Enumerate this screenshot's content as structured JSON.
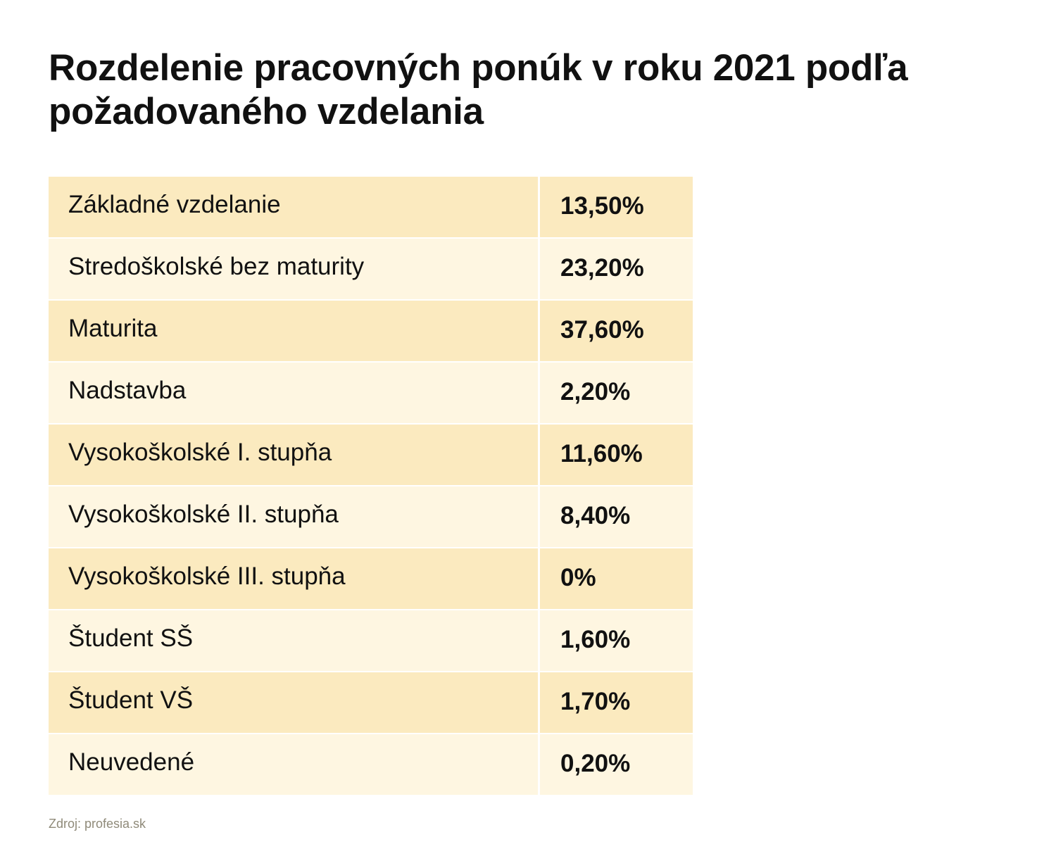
{
  "chart_data": {
    "type": "table",
    "title": "Rozdelenie pracovných ponúk v roku 2021 podľa požadovaného vzdelania",
    "rows": [
      {
        "label": "Základné vzdelanie",
        "value_text": "13,50%",
        "value": 13.5
      },
      {
        "label": "Stredoškolské bez maturity",
        "value_text": "23,20%",
        "value": 23.2
      },
      {
        "label": "Maturita",
        "value_text": "37,60%",
        "value": 37.6
      },
      {
        "label": "Nadstavba",
        "value_text": "2,20%",
        "value": 2.2
      },
      {
        "label": "Vysokoškolské I. stupňa",
        "value_text": "11,60%",
        "value": 11.6
      },
      {
        "label": "Vysokoškolské II. stupňa",
        "value_text": "8,40%",
        "value": 8.4
      },
      {
        "label": "Vysokoškolské III. stupňa",
        "value_text": "0%",
        "value": 0
      },
      {
        "label": "Študent SŠ",
        "value_text": "1,60%",
        "value": 1.6
      },
      {
        "label": "Študent VŠ",
        "value_text": "1,70%",
        "value": 1.7
      },
      {
        "label": "Neuvedené",
        "value_text": "0,20%",
        "value": 0.2
      }
    ],
    "source": "Zdroj: profesia.sk",
    "colors": {
      "row_odd": "#fbeabf",
      "row_even": "#fef6e1",
      "text": "#111111",
      "source_text": "#8f8a79"
    }
  }
}
